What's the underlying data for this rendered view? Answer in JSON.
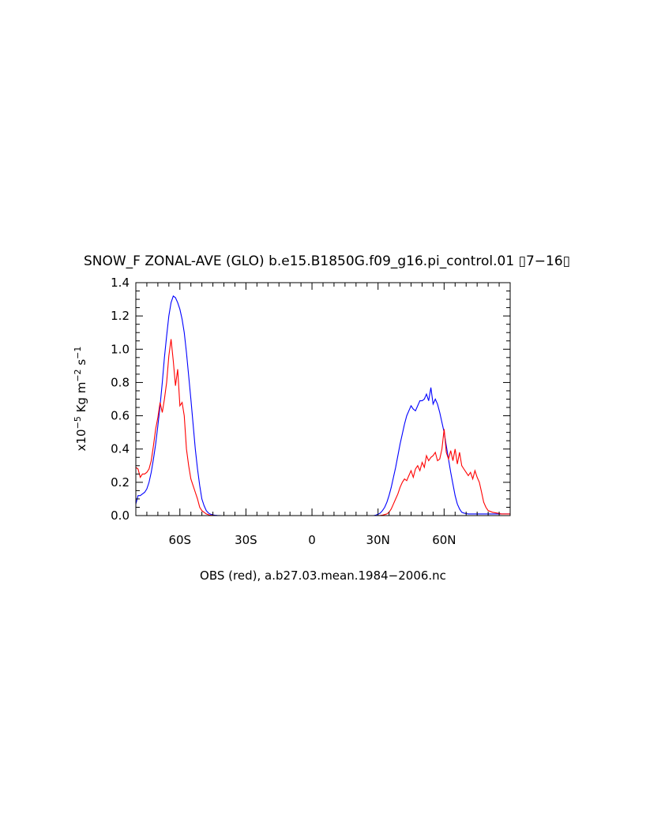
{
  "chart_data": {
    "type": "line",
    "title": "SNOW_F ZONAL-AVE (GLO) b.e15.B1850G.f09_g16.pi_control.01 ▯7−16▯",
    "ylabel_parts": {
      "prefix": "x10",
      "exp1": "−5",
      "mid1": " Kg m",
      "exp2": "−2",
      "mid2": " s",
      "exp3": "−1"
    },
    "xlabel": "OBS (red), a.b27.03.mean.1984−2006.nc",
    "xlim": [
      -80,
      90
    ],
    "ylim": [
      0,
      1.4
    ],
    "x_ticks": [
      {
        "value": -60,
        "label": "60S"
      },
      {
        "value": -30,
        "label": "30S"
      },
      {
        "value": 0,
        "label": "0"
      },
      {
        "value": 30,
        "label": "30N"
      },
      {
        "value": 60,
        "label": "60N"
      }
    ],
    "y_ticks": [
      {
        "value": 0.0,
        "label": "0.0"
      },
      {
        "value": 0.2,
        "label": "0.2"
      },
      {
        "value": 0.4,
        "label": "0.4"
      },
      {
        "value": 0.6,
        "label": "0.6"
      },
      {
        "value": 0.8,
        "label": "0.8"
      },
      {
        "value": 1.0,
        "label": "1.0"
      },
      {
        "value": 1.2,
        "label": "1.2"
      },
      {
        "value": 1.4,
        "label": "1.4"
      }
    ],
    "series": [
      {
        "color": "#0000ff",
        "x": [
          -80,
          -79,
          -78,
          -77,
          -76,
          -75,
          -74,
          -73,
          -72,
          -71,
          -70,
          -69,
          -68,
          -67,
          -66,
          -65,
          -64,
          -63,
          -62,
          -61,
          -60,
          -59,
          -58,
          -57,
          -56,
          -55,
          -54,
          -53,
          -52,
          -51,
          -50,
          -49,
          -48,
          -47,
          -46,
          -45,
          -44,
          -43,
          -42,
          -41,
          -40,
          -35,
          -30,
          -20,
          -10,
          0,
          10,
          20,
          28,
          29,
          30,
          31,
          32,
          33,
          34,
          35,
          36,
          37,
          38,
          39,
          40,
          41,
          42,
          43,
          44,
          45,
          46,
          47,
          48,
          49,
          50,
          51,
          52,
          53,
          54,
          55,
          56,
          57,
          58,
          59,
          60,
          61,
          62,
          63,
          64,
          65,
          66,
          67,
          68,
          69,
          70,
          71,
          72,
          73,
          74,
          75,
          76,
          77,
          78,
          79,
          80,
          82,
          84,
          86,
          88,
          90
        ],
        "y": [
          0.07,
          0.12,
          0.12,
          0.13,
          0.14,
          0.16,
          0.2,
          0.26,
          0.34,
          0.43,
          0.54,
          0.66,
          0.8,
          0.95,
          1.08,
          1.2,
          1.28,
          1.32,
          1.31,
          1.28,
          1.24,
          1.18,
          1.1,
          0.98,
          0.84,
          0.7,
          0.55,
          0.4,
          0.28,
          0.18,
          0.1,
          0.06,
          0.03,
          0.015,
          0.008,
          0.004,
          0.002,
          0.001,
          0.0005,
          0,
          0,
          0,
          0,
          0,
          0,
          0,
          0,
          0,
          0,
          0.003,
          0.008,
          0.015,
          0.03,
          0.05,
          0.08,
          0.12,
          0.17,
          0.23,
          0.29,
          0.36,
          0.43,
          0.49,
          0.55,
          0.6,
          0.63,
          0.66,
          0.64,
          0.63,
          0.66,
          0.69,
          0.69,
          0.7,
          0.73,
          0.69,
          0.77,
          0.67,
          0.7,
          0.67,
          0.62,
          0.56,
          0.5,
          0.42,
          0.34,
          0.26,
          0.19,
          0.12,
          0.07,
          0.04,
          0.02,
          0.015,
          0.012,
          0.01,
          0.01,
          0.01,
          0.01,
          0.01,
          0.01,
          0.01,
          0.01,
          0.01,
          0.01,
          0.01,
          0.01,
          0.01,
          0.01,
          0.01
        ],
        "x_fix": []
      },
      {
        "color": "#ff0000",
        "x": [
          -80,
          -79,
          -78,
          -77,
          -76,
          -75,
          -74,
          -73,
          -72,
          -71,
          -70,
          -69,
          -68,
          -67,
          -66,
          -65,
          -64,
          -63,
          -62,
          -61,
          -60,
          -59,
          -58,
          -57,
          -56,
          -55,
          -54,
          -53,
          -52,
          -51,
          -50,
          -49,
          -48,
          -47,
          -46,
          -45,
          -44,
          -40,
          -30,
          -20,
          -10,
          0,
          10,
          20,
          30,
          31,
          32,
          33,
          34,
          35,
          36,
          37,
          38,
          39,
          40,
          41,
          42,
          43,
          44,
          45,
          46,
          47,
          48,
          49,
          50,
          51,
          52,
          53,
          54,
          55,
          56,
          57,
          58,
          59,
          60,
          61,
          62,
          63,
          64,
          65,
          66,
          67,
          68,
          69,
          70,
          71,
          72,
          73,
          74,
          75,
          76,
          77,
          78,
          79,
          80,
          82,
          84,
          86,
          88,
          90
        ],
        "y": [
          0.29,
          0.28,
          0.23,
          0.25,
          0.25,
          0.26,
          0.28,
          0.33,
          0.42,
          0.52,
          0.59,
          0.68,
          0.62,
          0.7,
          0.8,
          0.96,
          1.06,
          0.93,
          0.78,
          0.88,
          0.66,
          0.68,
          0.6,
          0.4,
          0.3,
          0.22,
          0.18,
          0.14,
          0.1,
          0.05,
          0.03,
          0.02,
          0.01,
          0.005,
          0.002,
          0.001,
          0,
          0,
          0,
          0,
          0,
          0,
          0,
          0,
          0,
          0.001,
          0.003,
          0.006,
          0.01,
          0.02,
          0.04,
          0.07,
          0.1,
          0.13,
          0.17,
          0.2,
          0.22,
          0.21,
          0.24,
          0.27,
          0.23,
          0.28,
          0.3,
          0.27,
          0.32,
          0.29,
          0.36,
          0.33,
          0.35,
          0.36,
          0.38,
          0.33,
          0.34,
          0.4,
          0.52,
          0.38,
          0.34,
          0.39,
          0.33,
          0.4,
          0.31,
          0.38,
          0.3,
          0.28,
          0.26,
          0.24,
          0.26,
          0.22,
          0.27,
          0.23,
          0.2,
          0.14,
          0.08,
          0.05,
          0.03,
          0.02,
          0.015,
          0.01,
          0.01,
          0.01
        ]
      }
    ]
  }
}
